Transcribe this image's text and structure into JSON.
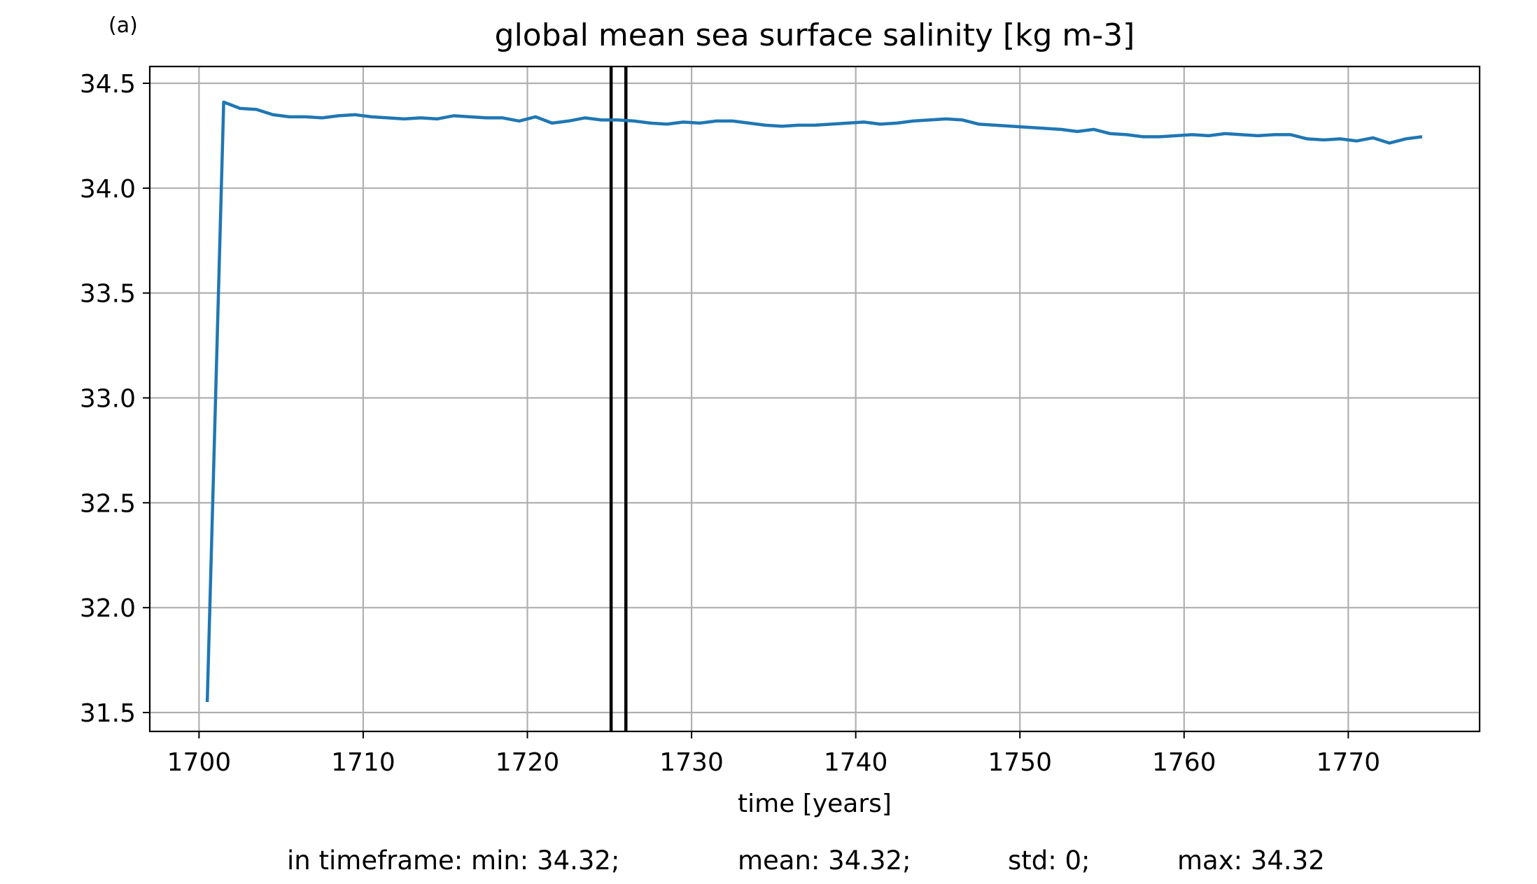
{
  "panel_label": "(a)",
  "chart_data": {
    "type": "line",
    "title": "global mean sea surface salinity [kg m-3]",
    "xlabel": "time [years]",
    "ylabel": "",
    "xlim": [
      1697,
      1778
    ],
    "ylim": [
      31.41,
      34.58
    ],
    "xticks": [
      1700,
      1710,
      1720,
      1730,
      1740,
      1750,
      1760,
      1770
    ],
    "yticks": [
      31.5,
      32.0,
      32.5,
      33.0,
      33.5,
      34.0,
      34.5
    ],
    "ytick_labels": [
      "31.5",
      "32.0",
      "32.5",
      "33.0",
      "33.5",
      "34.0",
      "34.5"
    ],
    "grid": true,
    "series": [
      {
        "color": "#1f77b4",
        "x": [
          1700.5,
          1701.5,
          1702.5,
          1703.5,
          1704.5,
          1705.5,
          1706.5,
          1707.5,
          1708.5,
          1709.5,
          1710.5,
          1711.5,
          1712.5,
          1713.5,
          1714.5,
          1715.5,
          1716.5,
          1717.5,
          1718.5,
          1719.5,
          1720.5,
          1721.5,
          1722.5,
          1723.5,
          1724.5,
          1725.5,
          1726.5,
          1727.5,
          1728.5,
          1729.5,
          1730.5,
          1731.5,
          1732.5,
          1733.5,
          1734.5,
          1735.5,
          1736.5,
          1737.5,
          1738.5,
          1739.5,
          1740.5,
          1741.5,
          1742.5,
          1743.5,
          1744.5,
          1745.5,
          1746.5,
          1747.5,
          1748.5,
          1749.5,
          1750.5,
          1751.5,
          1752.5,
          1753.5,
          1754.5,
          1755.5,
          1756.5,
          1757.5,
          1758.5,
          1759.5,
          1760.5,
          1761.5,
          1762.5,
          1763.5,
          1764.5,
          1765.5,
          1766.5,
          1767.5,
          1768.5,
          1769.5,
          1770.5,
          1771.5,
          1772.5,
          1773.5,
          1774.5
        ],
        "values": [
          31.55,
          34.41,
          34.38,
          34.375,
          34.35,
          34.34,
          34.34,
          34.335,
          34.345,
          34.35,
          34.34,
          34.335,
          34.33,
          34.335,
          34.33,
          34.345,
          34.34,
          34.335,
          34.335,
          34.32,
          34.34,
          34.31,
          34.32,
          34.335,
          34.325,
          34.325,
          34.32,
          34.31,
          34.305,
          34.315,
          34.31,
          34.32,
          34.32,
          34.31,
          34.3,
          34.295,
          34.3,
          34.3,
          34.305,
          34.31,
          34.315,
          34.305,
          34.31,
          34.32,
          34.325,
          34.33,
          34.325,
          34.305,
          34.3,
          34.295,
          34.29,
          34.285,
          34.28,
          34.27,
          34.28,
          34.26,
          34.255,
          34.245,
          34.245,
          34.25,
          34.255,
          34.25,
          34.26,
          34.255,
          34.25,
          34.255,
          34.255,
          34.235,
          34.23,
          34.235,
          34.225,
          34.24,
          34.215,
          34.235,
          34.245
        ]
      }
    ],
    "vlines": [
      1725.1,
      1726.0
    ],
    "vline_color": "#000000",
    "footer": {
      "prefix": "in timeframe: min: 34.32;",
      "mean": "mean: 34.32;",
      "std": "std: 0;",
      "max": "max: 34.32"
    }
  }
}
